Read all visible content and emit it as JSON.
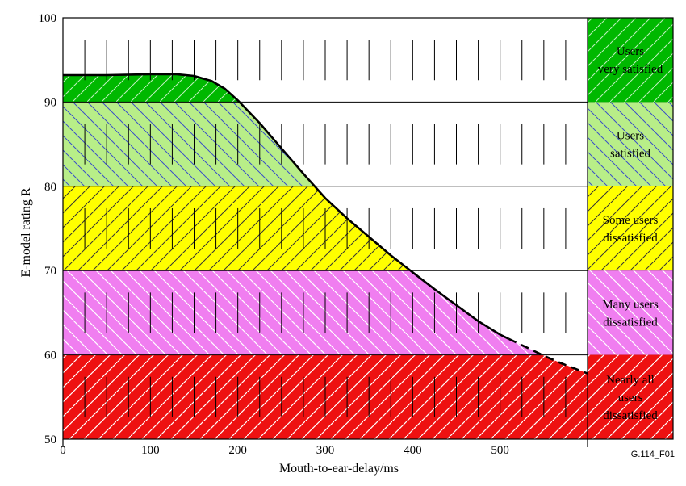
{
  "chart_data": {
    "type": "area",
    "xlabel": "Mouth-to-ear-delay/ms",
    "ylabel": "E-model rating R",
    "xlim": [
      0,
      600
    ],
    "ylim": [
      50,
      100
    ],
    "x_ticks": [
      0,
      100,
      200,
      300,
      400,
      500
    ],
    "y_ticks": [
      50,
      60,
      70,
      80,
      90,
      100
    ],
    "x_tick_labels": [
      "0",
      "100",
      "200",
      "300",
      "400",
      "500"
    ],
    "y_tick_labels": [
      "50",
      "60",
      "70",
      "80",
      "90",
      "100"
    ],
    "minor_x_step": 25,
    "bands": [
      {
        "from": 90,
        "to": 100,
        "color": "#00b800",
        "lines": [
          "Users",
          "very satisfied"
        ]
      },
      {
        "from": 80,
        "to": 90,
        "color": "#b8ee88",
        "lines": [
          "Users",
          "satisfied"
        ]
      },
      {
        "from": 70,
        "to": 80,
        "color": "#ffff00",
        "lines": [
          "Some users",
          "dissatisfied"
        ]
      },
      {
        "from": 60,
        "to": 70,
        "color": "#f07ef0",
        "lines": [
          "Many users",
          "dissatisfied"
        ]
      },
      {
        "from": 50,
        "to": 60,
        "color": "#ee1111",
        "lines": [
          "Nearly all",
          "users",
          "dissatisfied"
        ]
      }
    ],
    "series": [
      {
        "style": "solid",
        "x": [
          0,
          50,
          100,
          130,
          150,
          170,
          185,
          200,
          225,
          250,
          275,
          300,
          325,
          350,
          375,
          400,
          425,
          450,
          475,
          500,
          510
        ],
        "y": [
          93.2,
          93.2,
          93.3,
          93.3,
          93.1,
          92.5,
          91.6,
          90.2,
          87.5,
          84.5,
          81.5,
          78.6,
          76.2,
          74.0,
          71.8,
          69.8,
          67.8,
          65.9,
          64.0,
          62.4,
          61.9
        ]
      },
      {
        "style": "dashed",
        "x": [
          510,
          530,
          550,
          570,
          590,
          600
        ],
        "y": [
          61.9,
          60.9,
          59.9,
          59.0,
          58.2,
          57.8
        ]
      }
    ]
  },
  "reference_code": "G.114_F01"
}
